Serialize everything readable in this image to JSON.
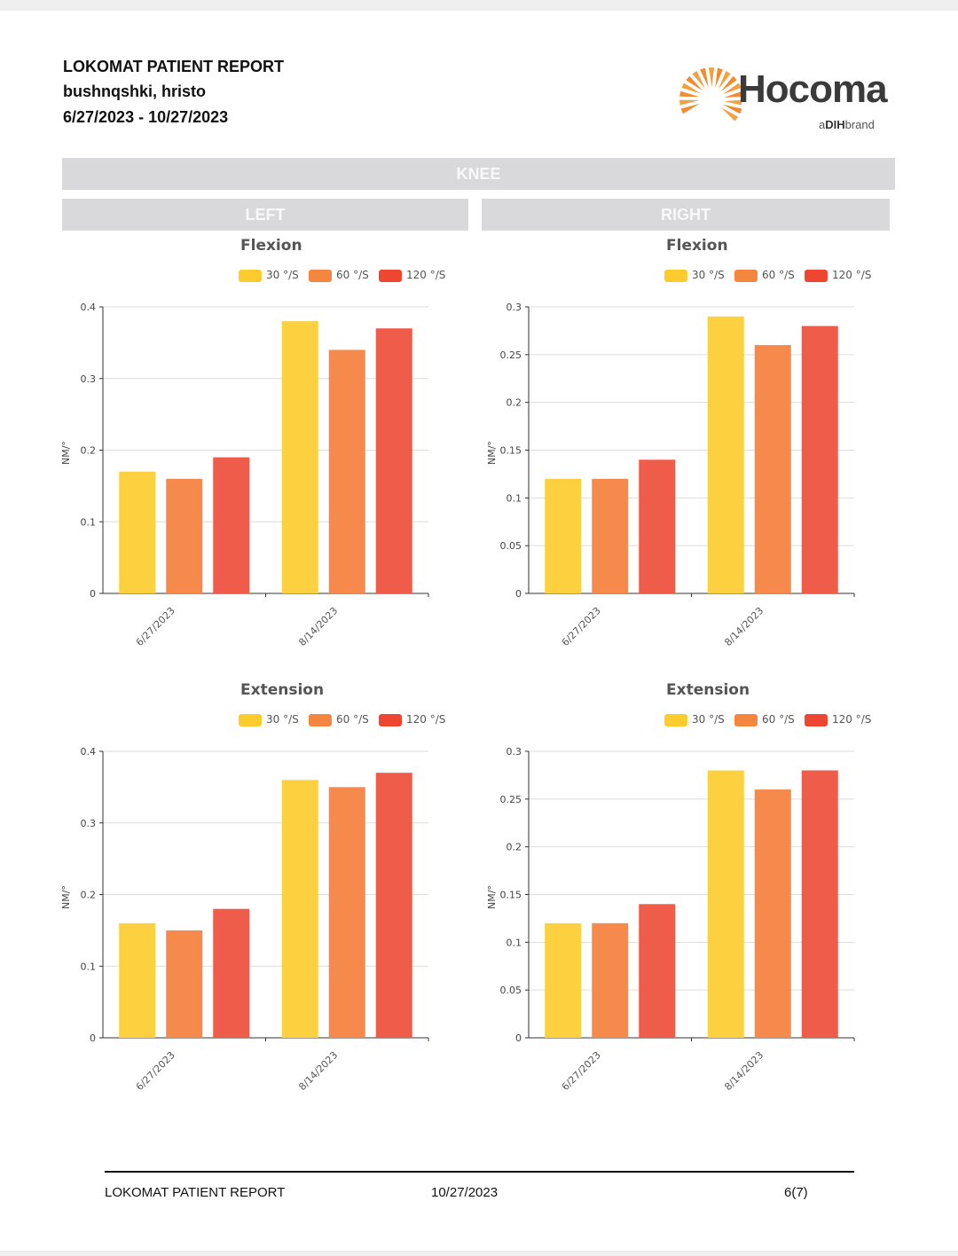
{
  "header": {
    "title": "LOKOMAT PATIENT REPORT",
    "patient": "bushnqshki, hristo",
    "date_range": "6/27/2023 - 10/27/2023"
  },
  "logo": {
    "word": "Hocoma",
    "sub_a": "a",
    "sub_b": "DIH",
    "sub_c": "brand",
    "color": "#f28a2e"
  },
  "section": {
    "title": "KNEE",
    "left": "LEFT",
    "right": "RIGHT"
  },
  "legend": [
    {
      "name": "30 °/S",
      "color": "#fccb2e"
    },
    {
      "name": "60 °/S",
      "color": "#f5863f"
    },
    {
      "name": "120 °/S",
      "color": "#ef4631"
    }
  ],
  "chart_data": [
    {
      "type": "bar",
      "side": "LEFT",
      "title": "Flexion",
      "ylabel": "NM/°",
      "categories": [
        "6/27/2023",
        "8/14/2023"
      ],
      "ylim": [
        0,
        0.4
      ],
      "yticks": [
        "0",
        "0.1",
        "0.2",
        "0.3",
        "0.4"
      ],
      "ytick_values": [
        0,
        0.1,
        0.2,
        0.3,
        0.4
      ],
      "series": [
        {
          "name": "30 °/S",
          "values": [
            0.17,
            0.38
          ]
        },
        {
          "name": "60 °/S",
          "values": [
            0.16,
            0.34
          ]
        },
        {
          "name": "120 °/S",
          "values": [
            0.19,
            0.37
          ]
        }
      ],
      "grid": true,
      "legend_position": "top"
    },
    {
      "type": "bar",
      "side": "RIGHT",
      "title": "Flexion",
      "ylabel": "NM/°",
      "categories": [
        "6/27/2023",
        "8/14/2023"
      ],
      "ylim": [
        0,
        0.3
      ],
      "yticks": [
        "0",
        "0.05",
        "0.1",
        "0.15",
        "0.2",
        "0.25",
        "0.3"
      ],
      "ytick_values": [
        0,
        0.05,
        0.1,
        0.15,
        0.2,
        0.25,
        0.3
      ],
      "series": [
        {
          "name": "30 °/S",
          "values": [
            0.12,
            0.29
          ]
        },
        {
          "name": "60 °/S",
          "values": [
            0.12,
            0.26
          ]
        },
        {
          "name": "120 °/S",
          "values": [
            0.14,
            0.28
          ]
        }
      ],
      "grid": true,
      "legend_position": "top"
    },
    {
      "type": "bar",
      "side": "LEFT",
      "title": "Extension",
      "ylabel": "NM/°",
      "categories": [
        "6/27/2023",
        "8/14/2023"
      ],
      "ylim": [
        0,
        0.4
      ],
      "yticks": [
        "0",
        "0.1",
        "0.2",
        "0.3",
        "0.4"
      ],
      "ytick_values": [
        0,
        0.1,
        0.2,
        0.3,
        0.4
      ],
      "series": [
        {
          "name": "30 °/S",
          "values": [
            0.16,
            0.36
          ]
        },
        {
          "name": "60 °/S",
          "values": [
            0.15,
            0.35
          ]
        },
        {
          "name": "120 °/S",
          "values": [
            0.18,
            0.37
          ]
        }
      ],
      "grid": true,
      "legend_position": "top"
    },
    {
      "type": "bar",
      "side": "RIGHT",
      "title": "Extension",
      "ylabel": "NM/°",
      "categories": [
        "6/27/2023",
        "8/14/2023"
      ],
      "ylim": [
        0,
        0.3
      ],
      "yticks": [
        "0",
        "0.05",
        "0.1",
        "0.15",
        "0.2",
        "0.25",
        "0.3"
      ],
      "ytick_values": [
        0,
        0.05,
        0.1,
        0.15,
        0.2,
        0.25,
        0.3
      ],
      "series": [
        {
          "name": "30 °/S",
          "values": [
            0.12,
            0.28
          ]
        },
        {
          "name": "60 °/S",
          "values": [
            0.12,
            0.26
          ]
        },
        {
          "name": "120 °/S",
          "values": [
            0.14,
            0.28
          ]
        }
      ],
      "grid": true,
      "legend_position": "top"
    }
  ],
  "footer": {
    "title": "LOKOMAT PATIENT REPORT",
    "date": "10/27/2023",
    "page": "6(7)"
  }
}
